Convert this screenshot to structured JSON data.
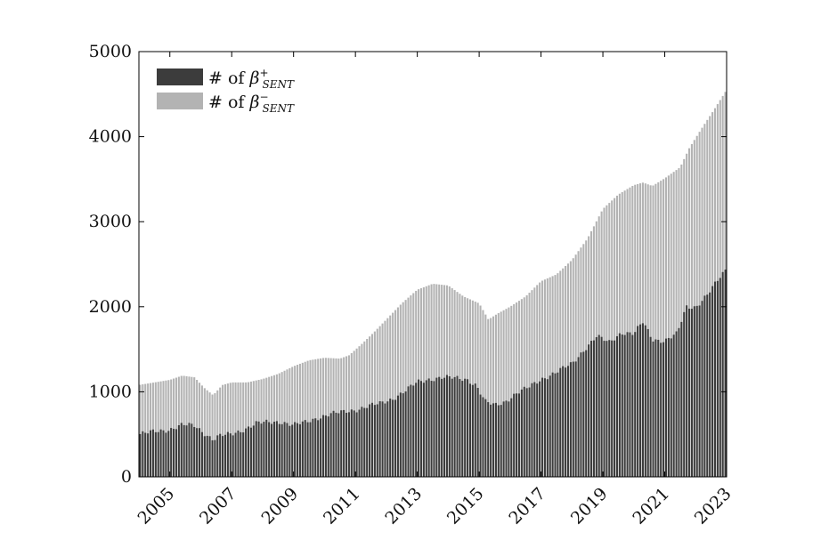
{
  "chart_data": {
    "type": "bar",
    "stacked": true,
    "title": "",
    "xlabel": "",
    "ylabel": "",
    "x_start": 2004.0,
    "x_end": 2023.0,
    "x_ticks": [
      "2005",
      "2007",
      "2009",
      "2011",
      "2013",
      "2015",
      "2017",
      "2019",
      "2021",
      "2023"
    ],
    "x_tick_values": [
      2005,
      2007,
      2009,
      2011,
      2013,
      2015,
      2017,
      2019,
      2021,
      2023
    ],
    "ylim": [
      0,
      5000
    ],
    "y_ticks": [
      "0",
      "1000",
      "2000",
      "3000",
      "4000",
      "5000"
    ],
    "y_tick_values": [
      0,
      1000,
      2000,
      3000,
      4000,
      5000
    ],
    "legend": {
      "placement": "top-left",
      "entries": [
        {
          "prefix": "# of ",
          "symbol": "β",
          "sup": "+",
          "sub": "SENT",
          "color": "#3c3c3c"
        },
        {
          "prefix": "# of ",
          "symbol": "β",
          "sup": "−",
          "sub": "SENT",
          "color": "#b3b3b3"
        }
      ]
    },
    "colors": {
      "positive": "#3c3c3c",
      "total": "#b3b3b3",
      "axis": "#000000"
    },
    "series": [
      {
        "name": "# of β+ SENT",
        "key": "positive",
        "points": [
          [
            2004.0,
            500
          ],
          [
            2004.5,
            530
          ],
          [
            2005.0,
            560
          ],
          [
            2005.4,
            610
          ],
          [
            2005.8,
            600
          ],
          [
            2006.1,
            520
          ],
          [
            2006.4,
            440
          ],
          [
            2006.6,
            480
          ],
          [
            2007.0,
            500
          ],
          [
            2007.4,
            560
          ],
          [
            2007.8,
            630
          ],
          [
            2008.2,
            640
          ],
          [
            2008.6,
            650
          ],
          [
            2009.0,
            610
          ],
          [
            2009.4,
            640
          ],
          [
            2009.8,
            700
          ],
          [
            2010.2,
            740
          ],
          [
            2010.6,
            760
          ],
          [
            2011.0,
            790
          ],
          [
            2011.4,
            830
          ],
          [
            2011.8,
            860
          ],
          [
            2012.2,
            920
          ],
          [
            2012.6,
            1010
          ],
          [
            2013.0,
            1110
          ],
          [
            2013.4,
            1150
          ],
          [
            2013.8,
            1170
          ],
          [
            2014.2,
            1160
          ],
          [
            2014.6,
            1150
          ],
          [
            2014.9,
            1080
          ],
          [
            2015.2,
            880
          ],
          [
            2015.5,
            840
          ],
          [
            2015.8,
            880
          ],
          [
            2016.2,
            980
          ],
          [
            2016.6,
            1050
          ],
          [
            2017.0,
            1150
          ],
          [
            2017.5,
            1230
          ],
          [
            2018.0,
            1330
          ],
          [
            2018.4,
            1500
          ],
          [
            2018.8,
            1650
          ],
          [
            2019.2,
            1580
          ],
          [
            2019.6,
            1700
          ],
          [
            2020.0,
            1680
          ],
          [
            2020.3,
            1820
          ],
          [
            2020.6,
            1620
          ],
          [
            2021.0,
            1600
          ],
          [
            2021.4,
            1680
          ],
          [
            2021.7,
            2000
          ],
          [
            2022.0,
            2000
          ],
          [
            2022.4,
            2150
          ],
          [
            2022.7,
            2300
          ],
          [
            2023.0,
            2450
          ]
        ]
      },
      {
        "name": "# of β− SENT",
        "key": "total",
        "points": [
          [
            2004.0,
            1080
          ],
          [
            2004.5,
            1110
          ],
          [
            2005.0,
            1140
          ],
          [
            2005.4,
            1190
          ],
          [
            2005.8,
            1170
          ],
          [
            2006.1,
            1050
          ],
          [
            2006.4,
            960
          ],
          [
            2006.7,
            1080
          ],
          [
            2007.0,
            1110
          ],
          [
            2007.5,
            1110
          ],
          [
            2008.0,
            1150
          ],
          [
            2008.5,
            1210
          ],
          [
            2009.0,
            1300
          ],
          [
            2009.5,
            1370
          ],
          [
            2010.0,
            1400
          ],
          [
            2010.5,
            1390
          ],
          [
            2010.8,
            1430
          ],
          [
            2011.2,
            1560
          ],
          [
            2011.6,
            1700
          ],
          [
            2012.0,
            1850
          ],
          [
            2012.5,
            2040
          ],
          [
            2013.0,
            2200
          ],
          [
            2013.5,
            2270
          ],
          [
            2014.0,
            2250
          ],
          [
            2014.5,
            2120
          ],
          [
            2015.0,
            2040
          ],
          [
            2015.3,
            1850
          ],
          [
            2015.6,
            1920
          ],
          [
            2016.0,
            2000
          ],
          [
            2016.5,
            2120
          ],
          [
            2017.0,
            2300
          ],
          [
            2017.5,
            2380
          ],
          [
            2018.0,
            2550
          ],
          [
            2018.5,
            2800
          ],
          [
            2019.0,
            3150
          ],
          [
            2019.5,
            3320
          ],
          [
            2020.0,
            3430
          ],
          [
            2020.3,
            3460
          ],
          [
            2020.6,
            3420
          ],
          [
            2021.0,
            3510
          ],
          [
            2021.5,
            3640
          ],
          [
            2021.8,
            3870
          ],
          [
            2022.2,
            4100
          ],
          [
            2022.6,
            4320
          ],
          [
            2023.0,
            4550
          ]
        ]
      }
    ]
  }
}
